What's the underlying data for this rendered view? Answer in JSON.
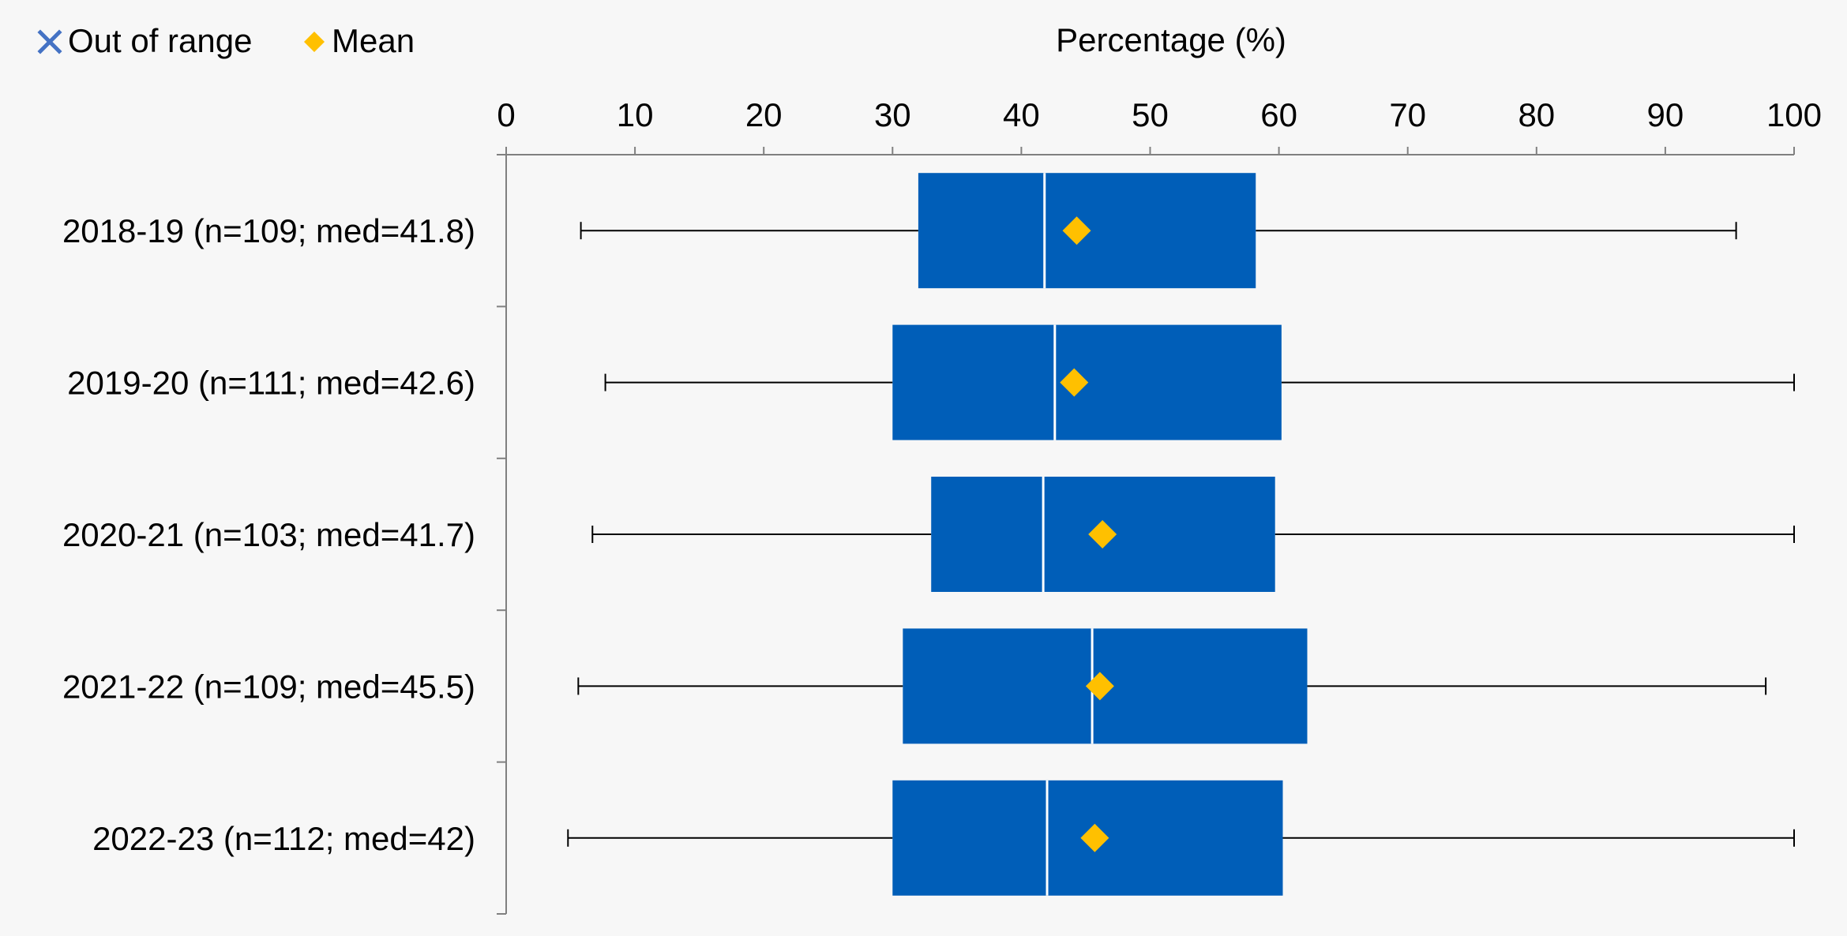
{
  "chart_data": {
    "type": "boxplot",
    "orientation": "horizontal",
    "title": "Percentage (%)",
    "xlabel": "Percentage (%)",
    "xlim": [
      0,
      100
    ],
    "x_ticks": [
      "0",
      "10",
      "20",
      "30",
      "40",
      "50",
      "60",
      "70",
      "80",
      "90",
      "100"
    ],
    "legend": {
      "placement": "top-left",
      "items": [
        {
          "label": "Out of range",
          "marker": "x-icon",
          "color": "#4472c4"
        },
        {
          "label": "Mean",
          "marker": "diamond-icon",
          "color": "#ffc000"
        }
      ]
    },
    "colors": {
      "box": "#005eb8",
      "mean": "#ffc000",
      "median": "#ffffff",
      "whisker": "#000000"
    },
    "series": [
      {
        "category": "2018-19 (n=109; med=41.8)",
        "whisker_low": 5.8,
        "q1": 32.0,
        "median": 41.8,
        "q3": 58.2,
        "whisker_high": 95.5,
        "mean": 44.3
      },
      {
        "category": "2019-20 (n=111; med=42.6)",
        "whisker_low": 7.7,
        "q1": 30.0,
        "median": 42.6,
        "q3": 60.2,
        "whisker_high": 100,
        "mean": 44.1
      },
      {
        "category": "2020-21 (n=103; med=41.7)",
        "whisker_low": 6.7,
        "q1": 33.0,
        "median": 41.7,
        "q3": 59.7,
        "whisker_high": 100,
        "mean": 46.3
      },
      {
        "category": "2021-22 (n=109; med=45.5)",
        "whisker_low": 5.6,
        "q1": 30.8,
        "median": 45.5,
        "q3": 62.2,
        "whisker_high": 97.8,
        "mean": 46.1
      },
      {
        "category": "2022-23 (n=112; med=42)",
        "whisker_low": 4.8,
        "q1": 30.0,
        "median": 42.0,
        "q3": 60.3,
        "whisker_high": 100,
        "mean": 45.7
      }
    ]
  }
}
